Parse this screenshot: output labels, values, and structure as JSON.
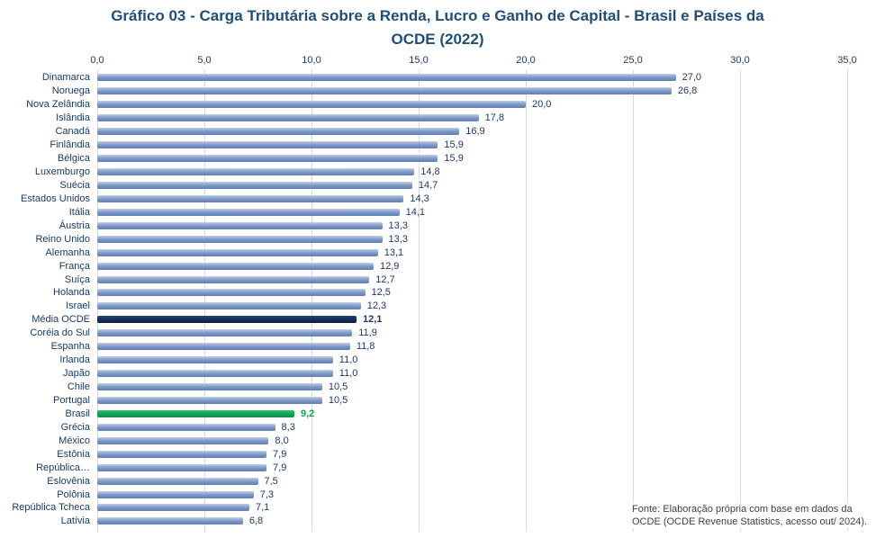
{
  "title": {
    "line1": "Gráfico 03 - Carga Tributária sobre a Renda, Lucro e Ganho de Capital - Brasil e Países da",
    "line2": "OCDE (2022)",
    "full": "Gráfico 03 - Carga Tributária sobre a Renda, Lucro e Ganho de Capital - Brasil e Países da OCDE (2022)"
  },
  "source_note": {
    "line1": "Fonte:  Elaboração própria com base em dados da",
    "line2": "OCDE (OCDE Revenue Statistics, acesso out/ 2024)."
  },
  "chart_data": {
    "type": "bar",
    "orientation": "horizontal",
    "title": "Gráfico 03 - Carga Tributária sobre a Renda, Lucro e Ganho de Capital - Brasil e Países da OCDE (2022)",
    "xlabel": "",
    "ylabel": "",
    "xlim": [
      0,
      35
    ],
    "grid": true,
    "legend": false,
    "axis": {
      "tick_values": [
        0,
        5,
        10,
        15,
        20,
        25,
        30,
        35
      ],
      "tick_labels": [
        "0,0",
        "5,0",
        "10,0",
        "15,0",
        "20,0",
        "25,0",
        "30,0",
        "35,0"
      ],
      "position": "top"
    },
    "categories": [
      "Dinamarca",
      "Noruega",
      "Nova Zelândia",
      "Islândia",
      "Canadá",
      "Finlândia",
      "Bélgica",
      "Luxemburgo",
      "Suécia",
      "Estados Unidos",
      "Itália",
      "Áustria",
      "Reino Unido",
      "Alemanha",
      "França",
      "Suíça",
      "Holanda",
      "Israel",
      "Média OCDE",
      "Coréia do Sul",
      "Espanha",
      "Irlanda",
      "Japão",
      "Chile",
      "Portugal",
      "Brasil",
      "Grécia",
      "México",
      "Estônia",
      "República…",
      "Eslovênia",
      "Polônia",
      "República Tcheca",
      "Latívia"
    ],
    "values": [
      27.0,
      26.8,
      20.0,
      17.8,
      16.9,
      15.9,
      15.9,
      14.8,
      14.7,
      14.3,
      14.1,
      13.3,
      13.3,
      13.1,
      12.9,
      12.7,
      12.5,
      12.3,
      12.1,
      11.9,
      11.8,
      11.0,
      11.0,
      10.5,
      10.5,
      9.2,
      8.3,
      8.0,
      7.9,
      7.9,
      7.5,
      7.3,
      7.1,
      6.8
    ],
    "rows": [
      {
        "label": "Dinamarca",
        "value": 27.0,
        "display": "27,0",
        "type": "default"
      },
      {
        "label": "Noruega",
        "value": 26.8,
        "display": "26,8",
        "type": "default"
      },
      {
        "label": "Nova Zelândia",
        "value": 20.0,
        "display": "20,0",
        "type": "default"
      },
      {
        "label": "Islândia",
        "value": 17.8,
        "display": "17,8",
        "type": "default"
      },
      {
        "label": "Canadá",
        "value": 16.9,
        "display": "16,9",
        "type": "default"
      },
      {
        "label": "Finlândia",
        "value": 15.9,
        "display": "15,9",
        "type": "default"
      },
      {
        "label": "Bélgica",
        "value": 15.9,
        "display": "15,9",
        "type": "default"
      },
      {
        "label": "Luxemburgo",
        "value": 14.8,
        "display": "14,8",
        "type": "default"
      },
      {
        "label": "Suécia",
        "value": 14.7,
        "display": "14,7",
        "type": "default"
      },
      {
        "label": "Estados Unidos",
        "value": 14.3,
        "display": "14,3",
        "type": "default"
      },
      {
        "label": "Itália",
        "value": 14.1,
        "display": "14,1",
        "type": "default"
      },
      {
        "label": "Áustria",
        "value": 13.3,
        "display": "13,3",
        "type": "default"
      },
      {
        "label": "Reino Unido",
        "value": 13.3,
        "display": "13,3",
        "type": "default"
      },
      {
        "label": "Alemanha",
        "value": 13.1,
        "display": "13,1",
        "type": "default"
      },
      {
        "label": "França",
        "value": 12.9,
        "display": "12,9",
        "type": "default"
      },
      {
        "label": "Suíça",
        "value": 12.7,
        "display": "12,7",
        "type": "default"
      },
      {
        "label": "Holanda",
        "value": 12.5,
        "display": "12,5",
        "type": "default"
      },
      {
        "label": "Israel",
        "value": 12.3,
        "display": "12,3",
        "type": "default"
      },
      {
        "label": "Média OCDE",
        "value": 12.1,
        "display": "12,1",
        "type": "ocde"
      },
      {
        "label": "Coréia do Sul",
        "value": 11.9,
        "display": "11,9",
        "type": "default"
      },
      {
        "label": "Espanha",
        "value": 11.8,
        "display": "11,8",
        "type": "default"
      },
      {
        "label": "Irlanda",
        "value": 11.0,
        "display": "11,0",
        "type": "default"
      },
      {
        "label": "Japão",
        "value": 11.0,
        "display": "11,0",
        "type": "default"
      },
      {
        "label": "Chile",
        "value": 10.5,
        "display": "10,5",
        "type": "default"
      },
      {
        "label": "Portugal",
        "value": 10.5,
        "display": "10,5",
        "type": "default"
      },
      {
        "label": "Brasil",
        "value": 9.2,
        "display": "9,2",
        "type": "brasil"
      },
      {
        "label": "Grécia",
        "value": 8.3,
        "display": "8,3",
        "type": "default"
      },
      {
        "label": "México",
        "value": 8.0,
        "display": "8,0",
        "type": "default"
      },
      {
        "label": "Estônia",
        "value": 7.9,
        "display": "7,9",
        "type": "default"
      },
      {
        "label": "República…",
        "value": 7.9,
        "display": "7,9",
        "type": "default"
      },
      {
        "label": "Eslovênia",
        "value": 7.5,
        "display": "7,5",
        "type": "default"
      },
      {
        "label": "Polônia",
        "value": 7.3,
        "display": "7,3",
        "type": "default"
      },
      {
        "label": "República Tcheca",
        "value": 7.1,
        "display": "7,1",
        "type": "default"
      },
      {
        "label": "Latívia",
        "value": 6.8,
        "display": "6,8",
        "type": "default"
      }
    ],
    "colors": {
      "title_text": "#1F4E79",
      "axis_text": "#1F3864",
      "category_text": "#17375E",
      "value_text": "#1F3864",
      "default_bar": "#7B97C5",
      "media_ocde_bar": "#15305E",
      "brasil_bar": "#14A356",
      "brasil_value_text": "#12A155",
      "gridline": "#D9D9D9",
      "background": "#FFFFFF"
    }
  }
}
